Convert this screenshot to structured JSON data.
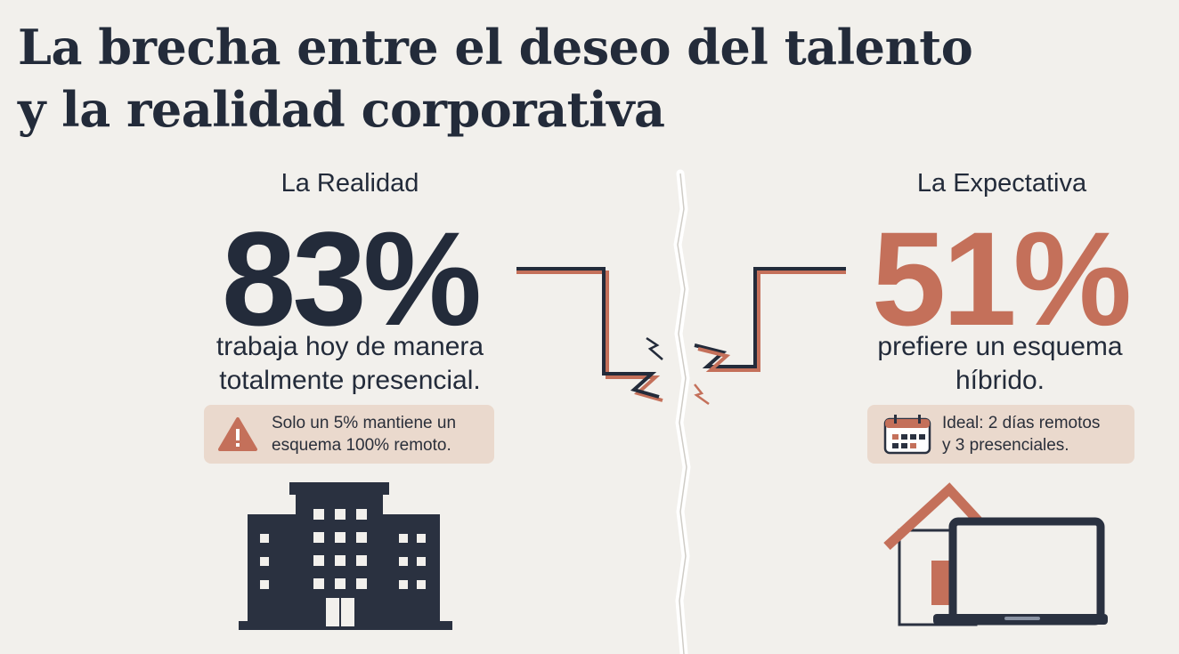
{
  "title": {
    "line1": "La brecha entre el deseo del talento",
    "line2": "y la realidad corporativa"
  },
  "reality": {
    "label": "La Realidad",
    "value": "83%",
    "desc_line1": "trabaja hoy de manera",
    "desc_line2": "totalmente presencial.",
    "note_line1": "Solo un 5% mantiene un",
    "note_line2": "esquema 100% remoto.",
    "note_icon": "warning-icon",
    "illustration": "office-building-icon"
  },
  "expectation": {
    "label": "La Expectativa",
    "value": "51%",
    "desc_line1": "prefiere un esquema",
    "desc_line2": "híbrido.",
    "note_line1": "Ideal: 2 días remotos",
    "note_line2": "y 3 presenciales.",
    "note_icon": "calendar-icon",
    "illustration": "home-laptop-icon"
  },
  "colors": {
    "navy": "#232b3a",
    "terracotta": "#c4705a",
    "note_bg": "#ead9cd",
    "background": "#f2f0ec"
  }
}
